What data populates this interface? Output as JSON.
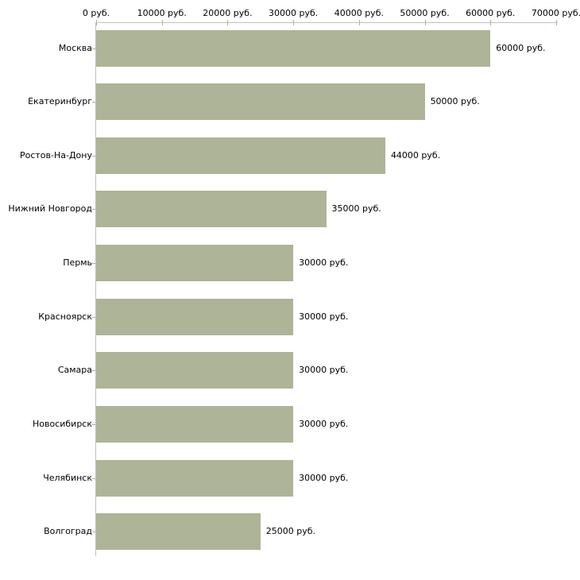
{
  "chart_data": {
    "type": "bar",
    "orientation": "horizontal",
    "title": "",
    "xlabel": "",
    "ylabel": "",
    "unit": "руб.",
    "categories": [
      "Москва",
      "Екатеринбург",
      "Ростов-На-Дону",
      "Нижний Новгород",
      "Пермь",
      "Красноярск",
      "Самара",
      "Новосибирск",
      "Челябинск",
      "Волгоград"
    ],
    "values": [
      60000,
      50000,
      44000,
      35000,
      30000,
      30000,
      30000,
      30000,
      30000,
      25000
    ],
    "value_labels": [
      "60000 руб.",
      "50000 руб.",
      "44000 руб.",
      "35000 руб.",
      "30000 руб.",
      "30000 руб.",
      "30000 руб.",
      "30000 руб.",
      "30000 руб.",
      "25000 руб."
    ],
    "x_ticks": [
      0,
      10000,
      20000,
      30000,
      40000,
      50000,
      60000,
      70000
    ],
    "x_tick_labels": [
      "0 руб.",
      "10000 руб.",
      "20000 руб.",
      "30000 руб.",
      "40000 руб.",
      "50000 руб.",
      "60000 руб.",
      "70000 руб."
    ],
    "xlim": [
      0,
      70000
    ],
    "grid": false,
    "legend": false,
    "axis_position": "top",
    "colors": {
      "bar": "#aeb497",
      "axis_line": "#c0c0c0",
      "tick_mark": "#b9ae6e",
      "text": "#000000",
      "background": "#ffffff"
    }
  }
}
